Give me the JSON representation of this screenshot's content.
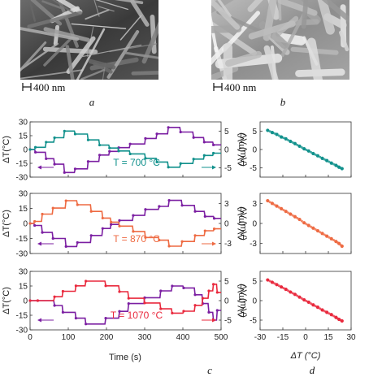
{
  "panels": {
    "a": {
      "letter": "a",
      "scalebar": "400 nm"
    },
    "b": {
      "letter": "b",
      "scalebar": "400 nm"
    },
    "c": {
      "letter": "c"
    },
    "d": {
      "letter": "d"
    }
  },
  "axes": {
    "left_ylabel": "ΔT(°C)",
    "right_ylabel": "ΔV (mV)",
    "xlabel": "Time (s)",
    "d_xlabel": "ΔT (°C)",
    "d_ylabel": "ΔV (mV)"
  },
  "colors": {
    "purple": "#7b1fa2",
    "teal": "#11918c",
    "orange": "#ee6a42",
    "red": "#e9293d"
  },
  "chart_data": [
    {
      "type": "line",
      "row": 1,
      "temp_label": "T = 700 °C",
      "series_color": "teal",
      "xlim": [
        0,
        500
      ],
      "ylim": [
        -30,
        30
      ],
      "y2lim": [
        -7.5,
        7.5
      ],
      "xticks": [
        0,
        100,
        200,
        300,
        400,
        500
      ],
      "yticks": [
        -30,
        -15,
        0,
        15,
        30
      ],
      "y2ticks": [
        -5,
        0,
        5
      ],
      "series": [
        {
          "axis": "left",
          "color": "purple",
          "x": [
            0,
            12,
            14,
            40,
            42,
            62,
            64,
            88,
            90,
            116,
            118,
            150,
            152,
            180,
            182,
            206,
            208,
            230,
            232,
            260,
            262,
            300,
            302,
            330,
            332,
            360,
            362,
            392,
            394,
            426,
            428,
            454,
            456,
            478,
            480,
            500
          ],
          "y": [
            0,
            0,
            -3,
            -3,
            -10,
            -10,
            -16,
            -16,
            -25,
            -25,
            -21,
            -21,
            -13,
            -13,
            -6,
            -6,
            -2,
            -2,
            2,
            2,
            6,
            6,
            12,
            12,
            17,
            17,
            24,
            24,
            19,
            19,
            13,
            13,
            8,
            8,
            5,
            5
          ]
        },
        {
          "axis": "right",
          "color": "teal",
          "x": [
            0,
            12,
            14,
            40,
            42,
            62,
            64,
            88,
            90,
            116,
            118,
            150,
            152,
            180,
            182,
            206,
            208,
            230,
            232,
            260,
            262,
            300,
            302,
            330,
            332,
            360,
            362,
            392,
            394,
            426,
            428,
            454,
            456,
            478,
            480,
            500
          ],
          "y": [
            0,
            0,
            0.6,
            0.6,
            2,
            2,
            3.2,
            3.2,
            5,
            5,
            4.2,
            4.2,
            2.6,
            2.6,
            1.2,
            1.2,
            0.4,
            0.4,
            -0.4,
            -0.4,
            -1.2,
            -1.2,
            -2.4,
            -2.4,
            -3.4,
            -3.4,
            -4.8,
            -4.8,
            -3.8,
            -3.8,
            -2.6,
            -2.6,
            -1.6,
            -1.6,
            -1,
            -1
          ]
        }
      ],
      "arrows": [
        {
          "color": "purple",
          "direction": "left"
        },
        {
          "color": "teal",
          "direction": "right"
        }
      ]
    },
    {
      "type": "line",
      "row": 2,
      "temp_label": "T = 870 °C",
      "series_color": "orange",
      "xlim": [
        0,
        500
      ],
      "ylim": [
        -30,
        30
      ],
      "y2lim": [
        -4.5,
        4.5
      ],
      "xticks": [
        0,
        100,
        200,
        300,
        400,
        500
      ],
      "yticks": [
        -30,
        -15,
        0,
        15,
        30
      ],
      "y2ticks": [
        -3,
        0,
        3
      ],
      "series": [
        {
          "axis": "left",
          "color": "purple",
          "x": [
            0,
            10,
            12,
            30,
            32,
            58,
            60,
            92,
            94,
            122,
            124,
            158,
            160,
            188,
            190,
            210,
            212,
            232,
            234,
            268,
            270,
            300,
            302,
            336,
            338,
            362,
            364,
            396,
            398,
            430,
            432,
            456,
            458,
            480,
            482,
            500
          ],
          "y": [
            0,
            0,
            -2,
            -2,
            -9,
            -9,
            -15,
            -15,
            -23,
            -23,
            -19,
            -19,
            -12,
            -12,
            -5,
            -5,
            -1,
            -1,
            3,
            3,
            8,
            8,
            14,
            14,
            17,
            17,
            23,
            23,
            18,
            18,
            12,
            12,
            7,
            7,
            5,
            5
          ]
        },
        {
          "axis": "right",
          "color": "orange",
          "x": [
            0,
            10,
            12,
            30,
            32,
            58,
            60,
            92,
            94,
            122,
            124,
            158,
            160,
            188,
            190,
            210,
            212,
            232,
            234,
            268,
            270,
            300,
            302,
            336,
            338,
            362,
            364,
            396,
            398,
            430,
            432,
            456,
            458,
            480,
            482,
            500
          ],
          "y": [
            0,
            0,
            0.3,
            0.3,
            1.4,
            1.4,
            2.3,
            2.3,
            3.4,
            3.4,
            2.8,
            2.8,
            1.8,
            1.8,
            0.8,
            0.8,
            0.2,
            0.2,
            -0.4,
            -0.4,
            -1.2,
            -1.2,
            -2.1,
            -2.1,
            -2.5,
            -2.5,
            -3.4,
            -3.4,
            -2.7,
            -2.7,
            -1.8,
            -1.8,
            -1.1,
            -1.1,
            -0.8,
            -0.8
          ]
        }
      ],
      "arrows": [
        {
          "color": "purple",
          "direction": "left"
        },
        {
          "color": "orange",
          "direction": "right"
        }
      ]
    },
    {
      "type": "line",
      "row": 3,
      "temp_label": "T = 1070 °C",
      "series_color": "red",
      "xlim": [
        0,
        500
      ],
      "ylim": [
        -30,
        30
      ],
      "y2lim": [
        -7.5,
        7.5
      ],
      "xticks": [
        0,
        100,
        200,
        300,
        400,
        500
      ],
      "yticks": [
        -30,
        -15,
        0,
        15,
        30
      ],
      "y2ticks": [
        -5,
        0,
        5
      ],
      "series": [
        {
          "axis": "left",
          "color": "purple",
          "x": [
            0,
            18,
            20,
            62,
            64,
            84,
            86,
            118,
            120,
            144,
            146,
            196,
            198,
            232,
            234,
            256,
            258,
            298,
            300,
            340,
            342,
            370,
            372,
            400,
            402,
            430,
            432,
            450,
            452,
            466,
            468,
            478,
            480,
            488,
            490,
            500
          ],
          "y": [
            0,
            0,
            0,
            0,
            -5,
            -5,
            -12,
            -12,
            -18,
            -18,
            -24,
            -24,
            -18,
            -18,
            -11,
            -11,
            -3,
            -3,
            3,
            3,
            10,
            10,
            15,
            15,
            13,
            13,
            6,
            6,
            -3,
            -3,
            -12,
            -12,
            -20,
            -20,
            -10,
            -10
          ]
        },
        {
          "axis": "right",
          "color": "red",
          "x": [
            0,
            18,
            20,
            62,
            64,
            84,
            86,
            118,
            120,
            144,
            146,
            196,
            198,
            232,
            234,
            256,
            258,
            298,
            300,
            340,
            342,
            370,
            372,
            400,
            402,
            430,
            432,
            450,
            452,
            466,
            468,
            478,
            480,
            488,
            490,
            500
          ],
          "y": [
            0,
            0,
            0,
            0,
            1,
            1,
            2.4,
            2.4,
            3.8,
            3.8,
            5,
            5,
            3.8,
            3.8,
            2.3,
            2.3,
            0.6,
            0.6,
            -0.6,
            -0.6,
            -2.1,
            -2.1,
            -3.2,
            -3.2,
            -2.7,
            -2.7,
            -1.2,
            -1.2,
            0.6,
            0.6,
            2.5,
            2.5,
            4.2,
            4.2,
            2.1,
            2.1
          ]
        }
      ],
      "arrows": [
        {
          "color": "purple",
          "direction": "left"
        },
        {
          "color": "red",
          "direction": "right"
        }
      ]
    },
    {
      "type": "scatter",
      "row": 1,
      "series_color": "teal",
      "xlim": [
        -30,
        30
      ],
      "ylim": [
        -7.5,
        7.5
      ],
      "yticks": [
        -5,
        0,
        5
      ],
      "points": {
        "x": [
          -25,
          -22,
          -19,
          -16,
          -13,
          -10,
          -7,
          -4,
          -1,
          2,
          5,
          8,
          11,
          14,
          17,
          20,
          22,
          24
        ],
        "y": [
          5.2,
          4.6,
          4.1,
          3.4,
          2.9,
          2.2,
          1.6,
          0.9,
          0.2,
          -0.4,
          -1.1,
          -1.7,
          -2.4,
          -3.0,
          -3.7,
          -4.3,
          -4.8,
          -5.2
        ]
      }
    },
    {
      "type": "scatter",
      "row": 2,
      "series_color": "orange",
      "xlim": [
        -30,
        30
      ],
      "ylim": [
        -4.5,
        4.5
      ],
      "yticks": [
        -3,
        0,
        3
      ],
      "points": {
        "x": [
          -25,
          -22,
          -19,
          -16,
          -13,
          -10,
          -7,
          -4,
          -1,
          2,
          5,
          8,
          11,
          14,
          17,
          20,
          22,
          24
        ],
        "y": [
          3.4,
          3.0,
          2.6,
          2.2,
          1.8,
          1.4,
          1.0,
          0.6,
          0.1,
          -0.3,
          -0.7,
          -1.1,
          -1.5,
          -1.9,
          -2.3,
          -2.7,
          -3.0,
          -3.4
        ]
      }
    },
    {
      "type": "scatter",
      "row": 3,
      "series_color": "red",
      "xlim": [
        -30,
        30
      ],
      "ylim": [
        -7.5,
        7.5
      ],
      "yticks": [
        -5,
        0,
        5
      ],
      "xticks": [
        -30,
        -15,
        0,
        15,
        30
      ],
      "xlabel": "ΔT (°C)",
      "points": {
        "x": [
          -25,
          -22,
          -19,
          -16,
          -13,
          -10,
          -7,
          -4,
          -1,
          2,
          5,
          8,
          11,
          14,
          17,
          20,
          22,
          24
        ],
        "y": [
          5.3,
          4.7,
          4.1,
          3.5,
          2.9,
          2.2,
          1.6,
          0.9,
          0.2,
          -0.4,
          -1.1,
          -1.7,
          -2.4,
          -3.0,
          -3.6,
          -4.3,
          -4.8,
          -5.2
        ]
      }
    }
  ]
}
